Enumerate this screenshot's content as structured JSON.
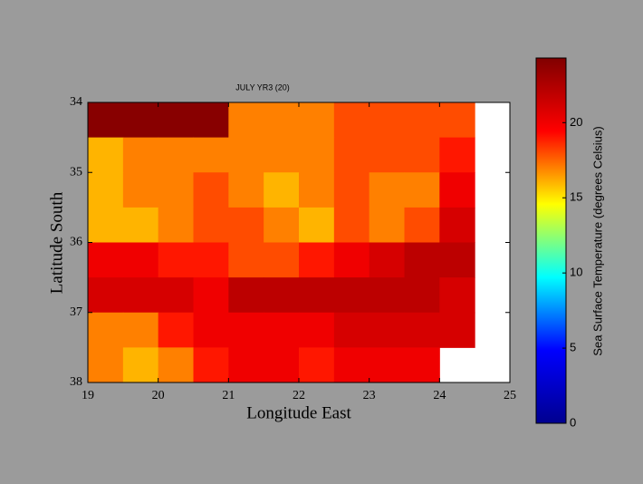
{
  "chart_data": {
    "type": "heatmap",
    "title": "JULY YR3 (20)",
    "x_label": "Longitude East",
    "y_label": "Latitude South",
    "x": [
      19.25,
      19.75,
      20.25,
      20.75,
      21.25,
      21.75,
      22.25,
      22.75,
      23.25,
      23.75,
      24.25,
      24.75
    ],
    "y": [
      34.25,
      34.75,
      35.25,
      35.75,
      36.25,
      36.75,
      37.25,
      37.75
    ],
    "values": [
      [
        24,
        24,
        24,
        24,
        17,
        17,
        17,
        18,
        18,
        18,
        18,
        null
      ],
      [
        16,
        17,
        17,
        17,
        17,
        17,
        17,
        18,
        18,
        18,
        19,
        null
      ],
      [
        16,
        17,
        17,
        18,
        17,
        16,
        17,
        18,
        17,
        17,
        20,
        null
      ],
      [
        16,
        16,
        17,
        18,
        18,
        17,
        16,
        18,
        17,
        18,
        21,
        null
      ],
      [
        20,
        20,
        19,
        19,
        18,
        18,
        19,
        20,
        21,
        22,
        22,
        null
      ],
      [
        21,
        21,
        21,
        20,
        22,
        22,
        22,
        22,
        22,
        22,
        21,
        null
      ],
      [
        17,
        17,
        19,
        20,
        20,
        20,
        20,
        21,
        21,
        21,
        21,
        null
      ],
      [
        17,
        16,
        17,
        19,
        20,
        20,
        19,
        20,
        20,
        20,
        null,
        null
      ]
    ],
    "xlim": [
      19,
      25
    ],
    "ylim": [
      34,
      38
    ],
    "y_inverted": true,
    "xticks": [
      19,
      20,
      21,
      22,
      23,
      24,
      25
    ],
    "yticks": [
      34,
      35,
      36,
      37,
      38
    ],
    "null_color": "#ffffff",
    "colorbar": {
      "label": "Sea Surface Temperature (degrees Celsius)",
      "lim": [
        0,
        24.3
      ],
      "ticks": [
        0,
        5,
        10,
        15,
        20
      ],
      "colormap": [
        "#00008f",
        "#0000ff",
        "#00ffff",
        "#ffff00",
        "#ff0000",
        "#800000"
      ]
    }
  }
}
